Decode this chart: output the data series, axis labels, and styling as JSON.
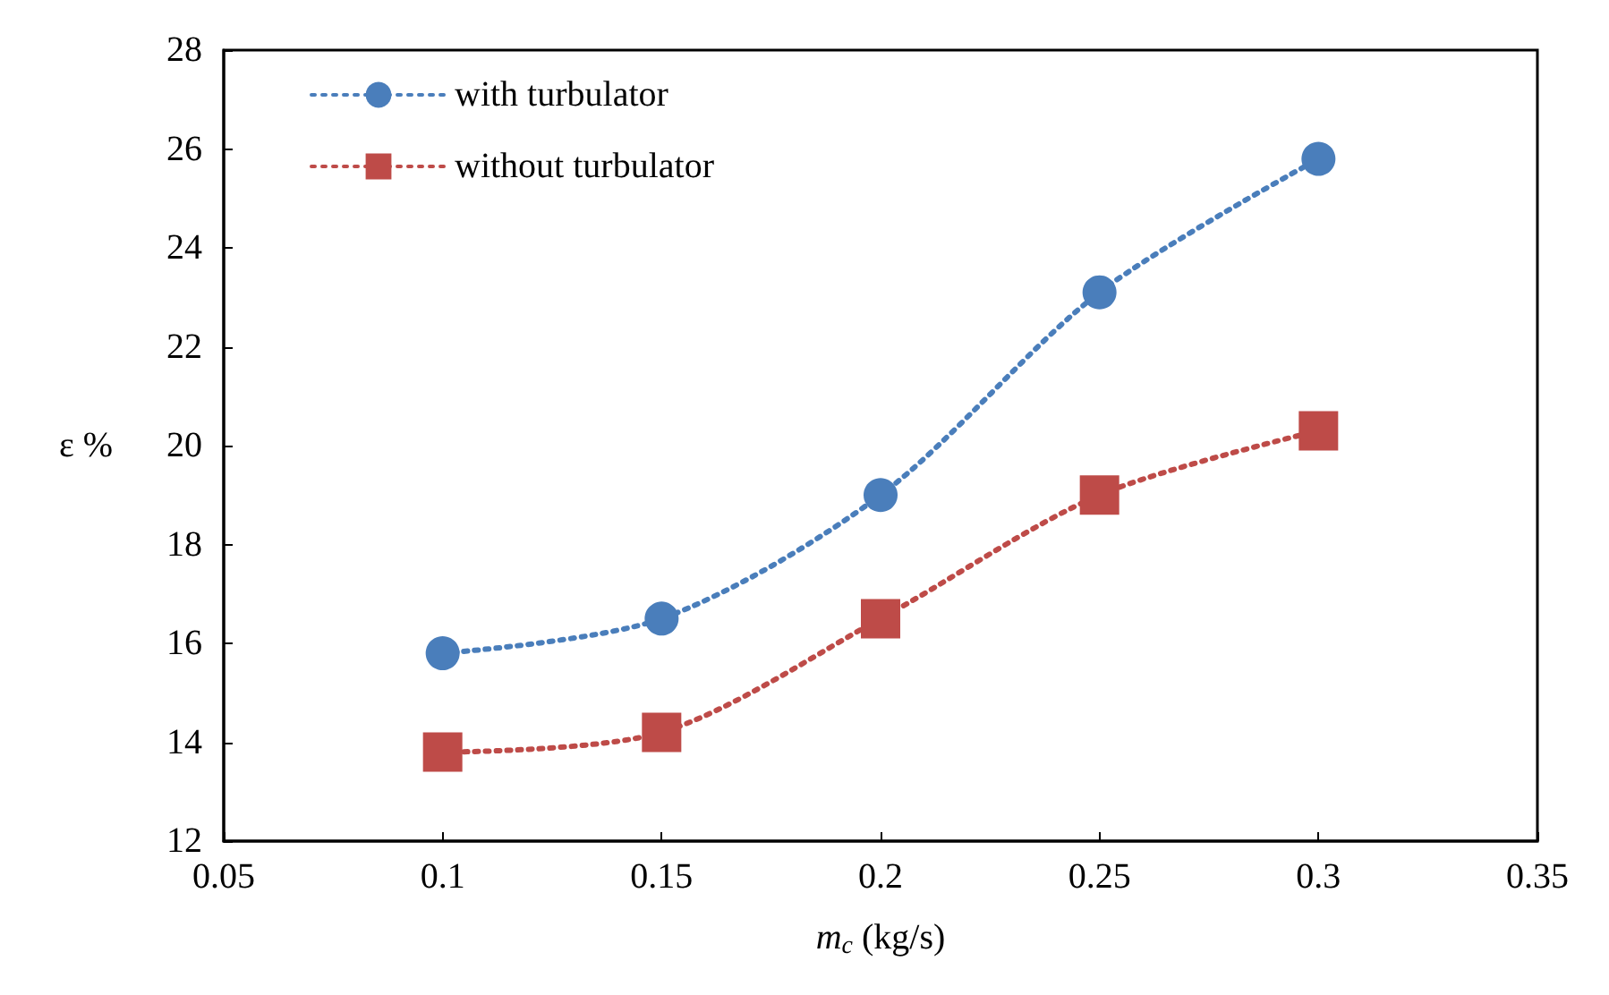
{
  "chart_data": {
    "type": "line",
    "xlabel": "m$_{c}$ (kg/s)",
    "ylabel": "ε %",
    "x": [
      0.1,
      0.15,
      0.2,
      0.25,
      0.3
    ],
    "series": [
      {
        "name": "with turbulator",
        "color": "#4a7ebb",
        "marker": "circle",
        "values": [
          15.8,
          16.5,
          19.0,
          23.1,
          25.8
        ]
      },
      {
        "name": "without turbulator",
        "color": "#be4b48",
        "marker": "square",
        "values": [
          13.8,
          14.2,
          16.5,
          19.0,
          20.3
        ]
      }
    ],
    "xlim": [
      0.05,
      0.35
    ],
    "xticks": [
      0.05,
      0.1,
      0.15,
      0.2,
      0.25,
      0.3,
      0.35
    ],
    "ylim": [
      12,
      28
    ],
    "yticks": [
      12,
      14,
      16,
      18,
      20,
      22,
      24,
      26,
      28
    ],
    "grid": false,
    "legend": "top left",
    "line_style": "dotted"
  }
}
